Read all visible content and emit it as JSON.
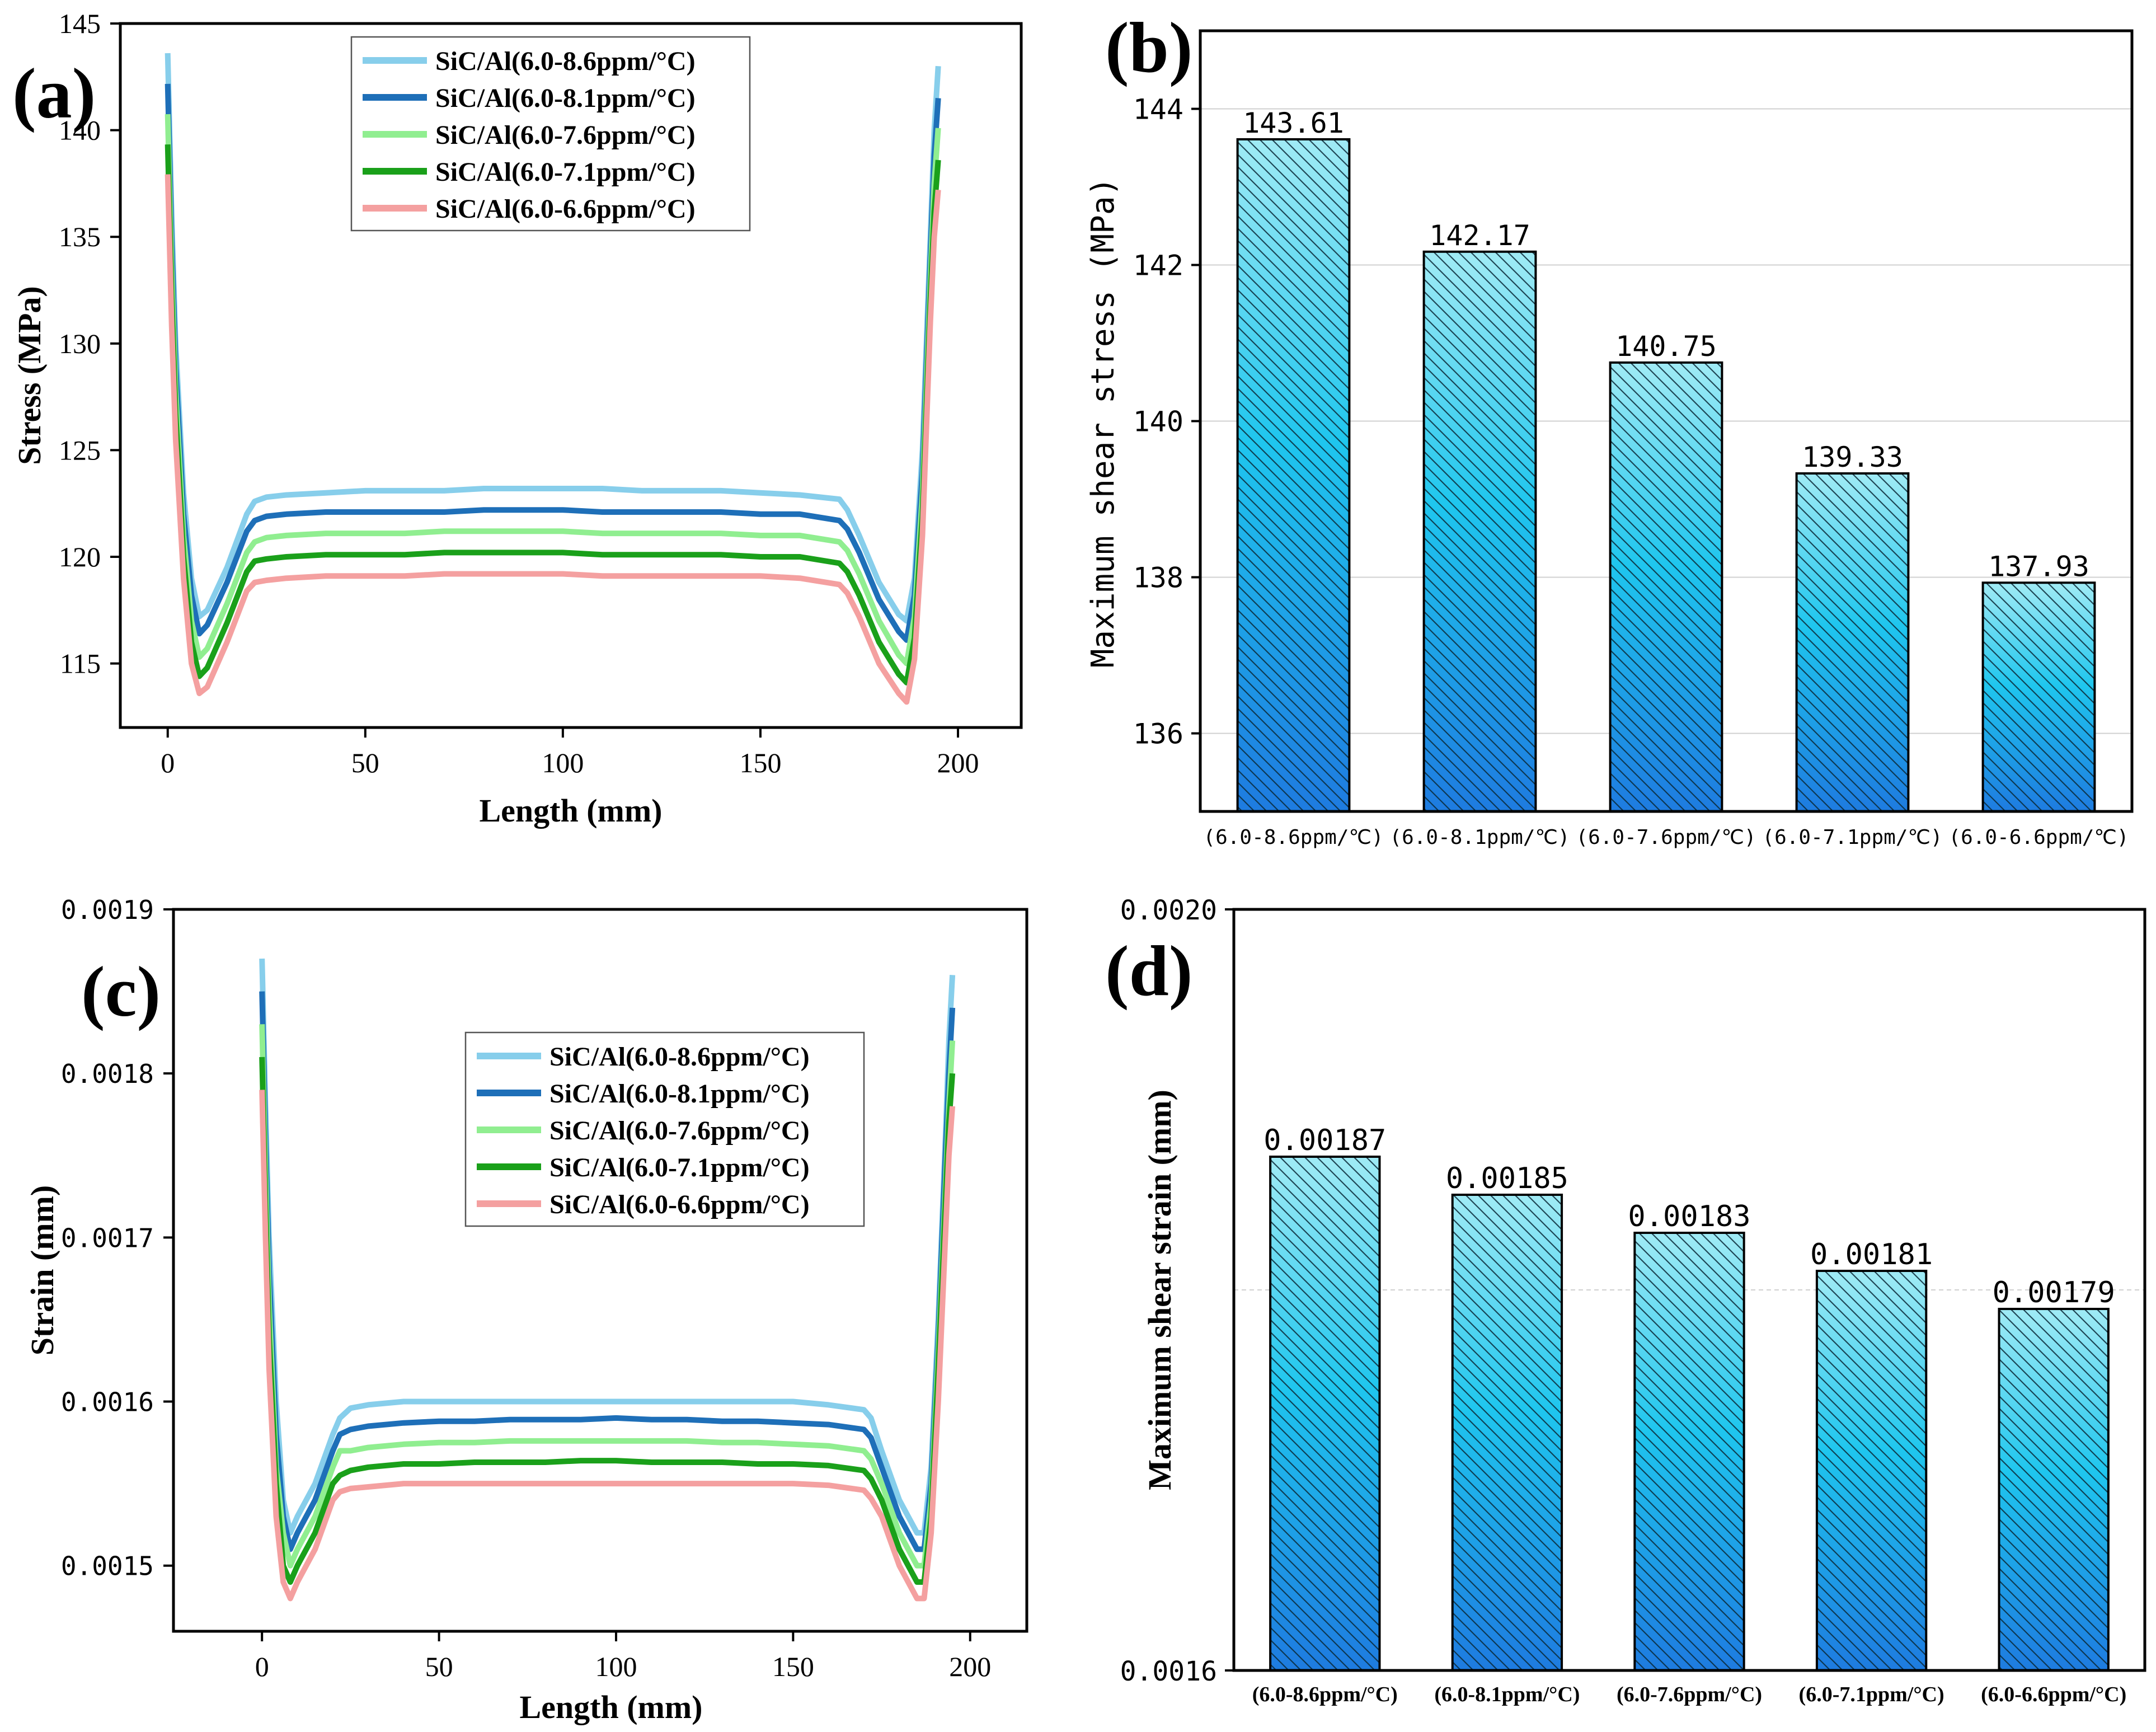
{
  "colors": {
    "s86": "#87CEEB",
    "s81": "#1E6FB8",
    "s76": "#90EE90",
    "s71": "#1AA01A",
    "s66": "#F4A0A0",
    "bar_top": "#A0EBF5",
    "bar_mid": "#1FC6EE",
    "bar_bottom": "#1E7BE0",
    "grid": "#d0d0d0"
  },
  "chart_data": [
    {
      "panel_label": "(a)",
      "type": "line",
      "xlabel": "Length (mm)",
      "ylabel": "Stress (MPa)",
      "xlim": [
        -12,
        216
      ],
      "ylim": [
        112,
        145
      ],
      "xticks": [
        0,
        50,
        100,
        150,
        200
      ],
      "xtick_labels": [
        "0",
        "50",
        "100",
        "150",
        "200"
      ],
      "yticks": [
        115,
        120,
        125,
        130,
        135,
        140,
        145
      ],
      "ytick_labels": [
        "115",
        "120",
        "125",
        "130",
        "135",
        "140",
        "145"
      ],
      "legend": "top-center",
      "x": [
        0,
        1,
        2,
        4,
        6,
        8,
        10,
        15,
        20,
        22,
        25,
        30,
        40,
        50,
        60,
        70,
        80,
        90,
        100,
        110,
        120,
        130,
        140,
        150,
        160,
        170,
        172,
        175,
        180,
        185,
        187,
        189,
        191,
        193,
        194,
        195
      ],
      "series": [
        {
          "name": "SiC/Al(6.0-8.6ppm/°C)",
          "color_key": "s86",
          "values": [
            143.61,
            136.0,
            130.0,
            123.0,
            119.0,
            117.2,
            117.5,
            119.5,
            122.0,
            122.6,
            122.8,
            122.9,
            123.0,
            123.1,
            123.1,
            123.1,
            123.2,
            123.2,
            123.2,
            123.2,
            123.1,
            123.1,
            123.1,
            123.0,
            122.9,
            122.7,
            122.2,
            121.0,
            118.8,
            117.3,
            117.0,
            119.0,
            125.0,
            135.0,
            140.0,
            143.0
          ]
        },
        {
          "name": "SiC/Al(6.0-8.1ppm/°C)",
          "color_key": "s81",
          "values": [
            142.17,
            134.8,
            128.9,
            122.0,
            118.2,
            116.4,
            116.8,
            118.8,
            121.2,
            121.7,
            121.9,
            122.0,
            122.1,
            122.1,
            122.1,
            122.1,
            122.2,
            122.2,
            122.2,
            122.1,
            122.1,
            122.1,
            122.1,
            122.0,
            122.0,
            121.7,
            121.3,
            120.2,
            118.0,
            116.5,
            116.1,
            118.2,
            124.0,
            134.0,
            138.8,
            141.5
          ]
        },
        {
          "name": "SiC/Al(6.0-7.6ppm/°C)",
          "color_key": "s76",
          "values": [
            140.75,
            133.5,
            127.8,
            121.0,
            117.0,
            115.3,
            115.7,
            117.8,
            120.2,
            120.7,
            120.9,
            121.0,
            121.1,
            121.1,
            121.1,
            121.2,
            121.2,
            121.2,
            121.2,
            121.1,
            121.1,
            121.1,
            121.1,
            121.0,
            121.0,
            120.7,
            120.3,
            119.2,
            117.0,
            115.4,
            115.0,
            117.2,
            123.0,
            133.0,
            137.5,
            140.1
          ]
        },
        {
          "name": "SiC/Al(6.0-7.1ppm/°C)",
          "color_key": "s71",
          "values": [
            139.33,
            132.2,
            126.7,
            120.0,
            116.0,
            114.4,
            114.8,
            116.9,
            119.3,
            119.8,
            119.9,
            120.0,
            120.1,
            120.1,
            120.1,
            120.2,
            120.2,
            120.2,
            120.2,
            120.1,
            120.1,
            120.1,
            120.1,
            120.0,
            120.0,
            119.7,
            119.3,
            118.2,
            116.0,
            114.5,
            114.1,
            116.2,
            122.0,
            132.0,
            136.2,
            138.6
          ]
        },
        {
          "name": "SiC/Al(6.0-6.6ppm/°C)",
          "color_key": "s66",
          "values": [
            137.93,
            130.8,
            125.5,
            119.0,
            115.0,
            113.6,
            113.9,
            116.0,
            118.4,
            118.8,
            118.9,
            119.0,
            119.1,
            119.1,
            119.1,
            119.2,
            119.2,
            119.2,
            119.2,
            119.1,
            119.1,
            119.1,
            119.1,
            119.1,
            119.0,
            118.7,
            118.3,
            117.2,
            115.0,
            113.6,
            113.2,
            115.2,
            121.0,
            131.0,
            135.0,
            137.2
          ]
        }
      ]
    },
    {
      "panel_label": "(b)",
      "type": "bar",
      "ylabel": "Maximum shear stress (MPa)",
      "categories": [
        "(6.0-8.6ppm/℃)",
        "(6.0-8.1ppm/℃)",
        "(6.0-7.6ppm/℃)",
        "(6.0-7.1ppm/℃)",
        "(6.0-6.6ppm/℃)"
      ],
      "values": [
        143.61,
        142.17,
        140.75,
        139.33,
        137.93
      ],
      "value_labels": [
        "143.61",
        "142.17",
        "140.75",
        "139.33",
        "137.93"
      ],
      "ylim": [
        135,
        145
      ],
      "yticks": [
        136,
        138,
        140,
        142,
        144
      ],
      "ytick_labels": [
        "136",
        "138",
        "140",
        "142",
        "144"
      ],
      "grid": true
    },
    {
      "panel_label": "(c)",
      "type": "line",
      "xlabel": "Length (mm)",
      "ylabel": "Strain (mm)",
      "xlim": [
        -25,
        216
      ],
      "ylim": [
        0.00146,
        0.0019
      ],
      "xticks": [
        0,
        50,
        100,
        150,
        200
      ],
      "xtick_labels": [
        "0",
        "50",
        "100",
        "150",
        "200"
      ],
      "yticks": [
        0.0015,
        0.0016,
        0.0017,
        0.0018,
        0.0019
      ],
      "ytick_labels": [
        "0.0015",
        "0.0016",
        "0.0017",
        "0.0018",
        "0.0019"
      ],
      "legend": "center-right",
      "x": [
        0,
        1,
        2,
        4,
        6,
        8,
        10,
        15,
        20,
        22,
        25,
        30,
        40,
        50,
        60,
        70,
        80,
        90,
        100,
        110,
        120,
        130,
        140,
        150,
        160,
        170,
        172,
        175,
        180,
        185,
        187,
        189,
        191,
        193,
        194,
        195
      ],
      "series": [
        {
          "name": "SiC/Al(6.0-8.6ppm/°C)",
          "color_key": "s86",
          "values": [
            0.00187,
            0.00178,
            0.0017,
            0.0016,
            0.00154,
            0.00152,
            0.00153,
            0.00155,
            0.00158,
            0.00159,
            0.001596,
            0.001598,
            0.0016,
            0.0016,
            0.0016,
            0.0016,
            0.0016,
            0.0016,
            0.0016,
            0.0016,
            0.0016,
            0.0016,
            0.0016,
            0.0016,
            0.001598,
            0.001595,
            0.00159,
            0.00157,
            0.00154,
            0.00152,
            0.00152,
            0.00156,
            0.00165,
            0.00176,
            0.00182,
            0.00186
          ]
        },
        {
          "name": "SiC/Al(6.0-8.1ppm/°C)",
          "color_key": "s81",
          "values": [
            0.00185,
            0.00176,
            0.00168,
            0.00158,
            0.00153,
            0.00151,
            0.00152,
            0.00154,
            0.00157,
            0.00158,
            0.001583,
            0.001585,
            0.001587,
            0.001588,
            0.001588,
            0.001589,
            0.001589,
            0.001589,
            0.00159,
            0.001589,
            0.001589,
            0.001588,
            0.001588,
            0.001587,
            0.001586,
            0.001583,
            0.001578,
            0.00156,
            0.00153,
            0.00151,
            0.00151,
            0.00155,
            0.00164,
            0.00175,
            0.0018,
            0.00184
          ]
        },
        {
          "name": "SiC/Al(6.0-7.6ppm/°C)",
          "color_key": "s76",
          "values": [
            0.00183,
            0.00174,
            0.00166,
            0.00156,
            0.00152,
            0.0015,
            0.00151,
            0.00153,
            0.00156,
            0.00157,
            0.00157,
            0.001572,
            0.001574,
            0.001575,
            0.001575,
            0.001576,
            0.001576,
            0.001576,
            0.001576,
            0.001576,
            0.001576,
            0.001575,
            0.001575,
            0.001574,
            0.001573,
            0.00157,
            0.001565,
            0.00155,
            0.00152,
            0.0015,
            0.0015,
            0.00154,
            0.00163,
            0.00173,
            0.00178,
            0.00182
          ]
        },
        {
          "name": "SiC/Al(6.0-7.1ppm/°C)",
          "color_key": "s71",
          "values": [
            0.00181,
            0.00172,
            0.00164,
            0.00155,
            0.0015,
            0.00149,
            0.0015,
            0.00152,
            0.00155,
            0.001555,
            0.001558,
            0.00156,
            0.001562,
            0.001562,
            0.001563,
            0.001563,
            0.001563,
            0.001564,
            0.001564,
            0.001563,
            0.001563,
            0.001563,
            0.001562,
            0.001562,
            0.001561,
            0.001558,
            0.001553,
            0.00154,
            0.00151,
            0.00149,
            0.00149,
            0.00153,
            0.00162,
            0.00172,
            0.00177,
            0.0018
          ]
        },
        {
          "name": "SiC/Al(6.0-6.6ppm/°C)",
          "color_key": "s66",
          "values": [
            0.00179,
            0.0017,
            0.00162,
            0.00153,
            0.00149,
            0.00148,
            0.00149,
            0.00151,
            0.00154,
            0.001545,
            0.001547,
            0.001548,
            0.00155,
            0.00155,
            0.00155,
            0.00155,
            0.00155,
            0.00155,
            0.00155,
            0.00155,
            0.00155,
            0.00155,
            0.00155,
            0.00155,
            0.001549,
            0.001546,
            0.001541,
            0.00153,
            0.0015,
            0.00148,
            0.00148,
            0.00152,
            0.0016,
            0.0017,
            0.00175,
            0.00178
          ]
        }
      ]
    },
    {
      "panel_label": "(d)",
      "type": "bar",
      "ylabel": "Maximum shear strain (mm)",
      "categories": [
        "(6.0-8.6ppm/°C)",
        "(6.0-8.1ppm/°C)",
        "(6.0-7.6ppm/°C)",
        "(6.0-7.1ppm/°C)",
        "(6.0-6.6ppm/°C)"
      ],
      "values": [
        0.00187,
        0.00185,
        0.00183,
        0.00181,
        0.00179
      ],
      "value_labels": [
        "0.00187",
        "0.00185",
        "0.00183",
        "0.00181",
        "0.00179"
      ],
      "ylim": [
        0.0016,
        0.002
      ],
      "yticks": [
        0.0016,
        0.002
      ],
      "ytick_labels": [
        "0.0016",
        "0.0020"
      ],
      "grid": true
    }
  ]
}
